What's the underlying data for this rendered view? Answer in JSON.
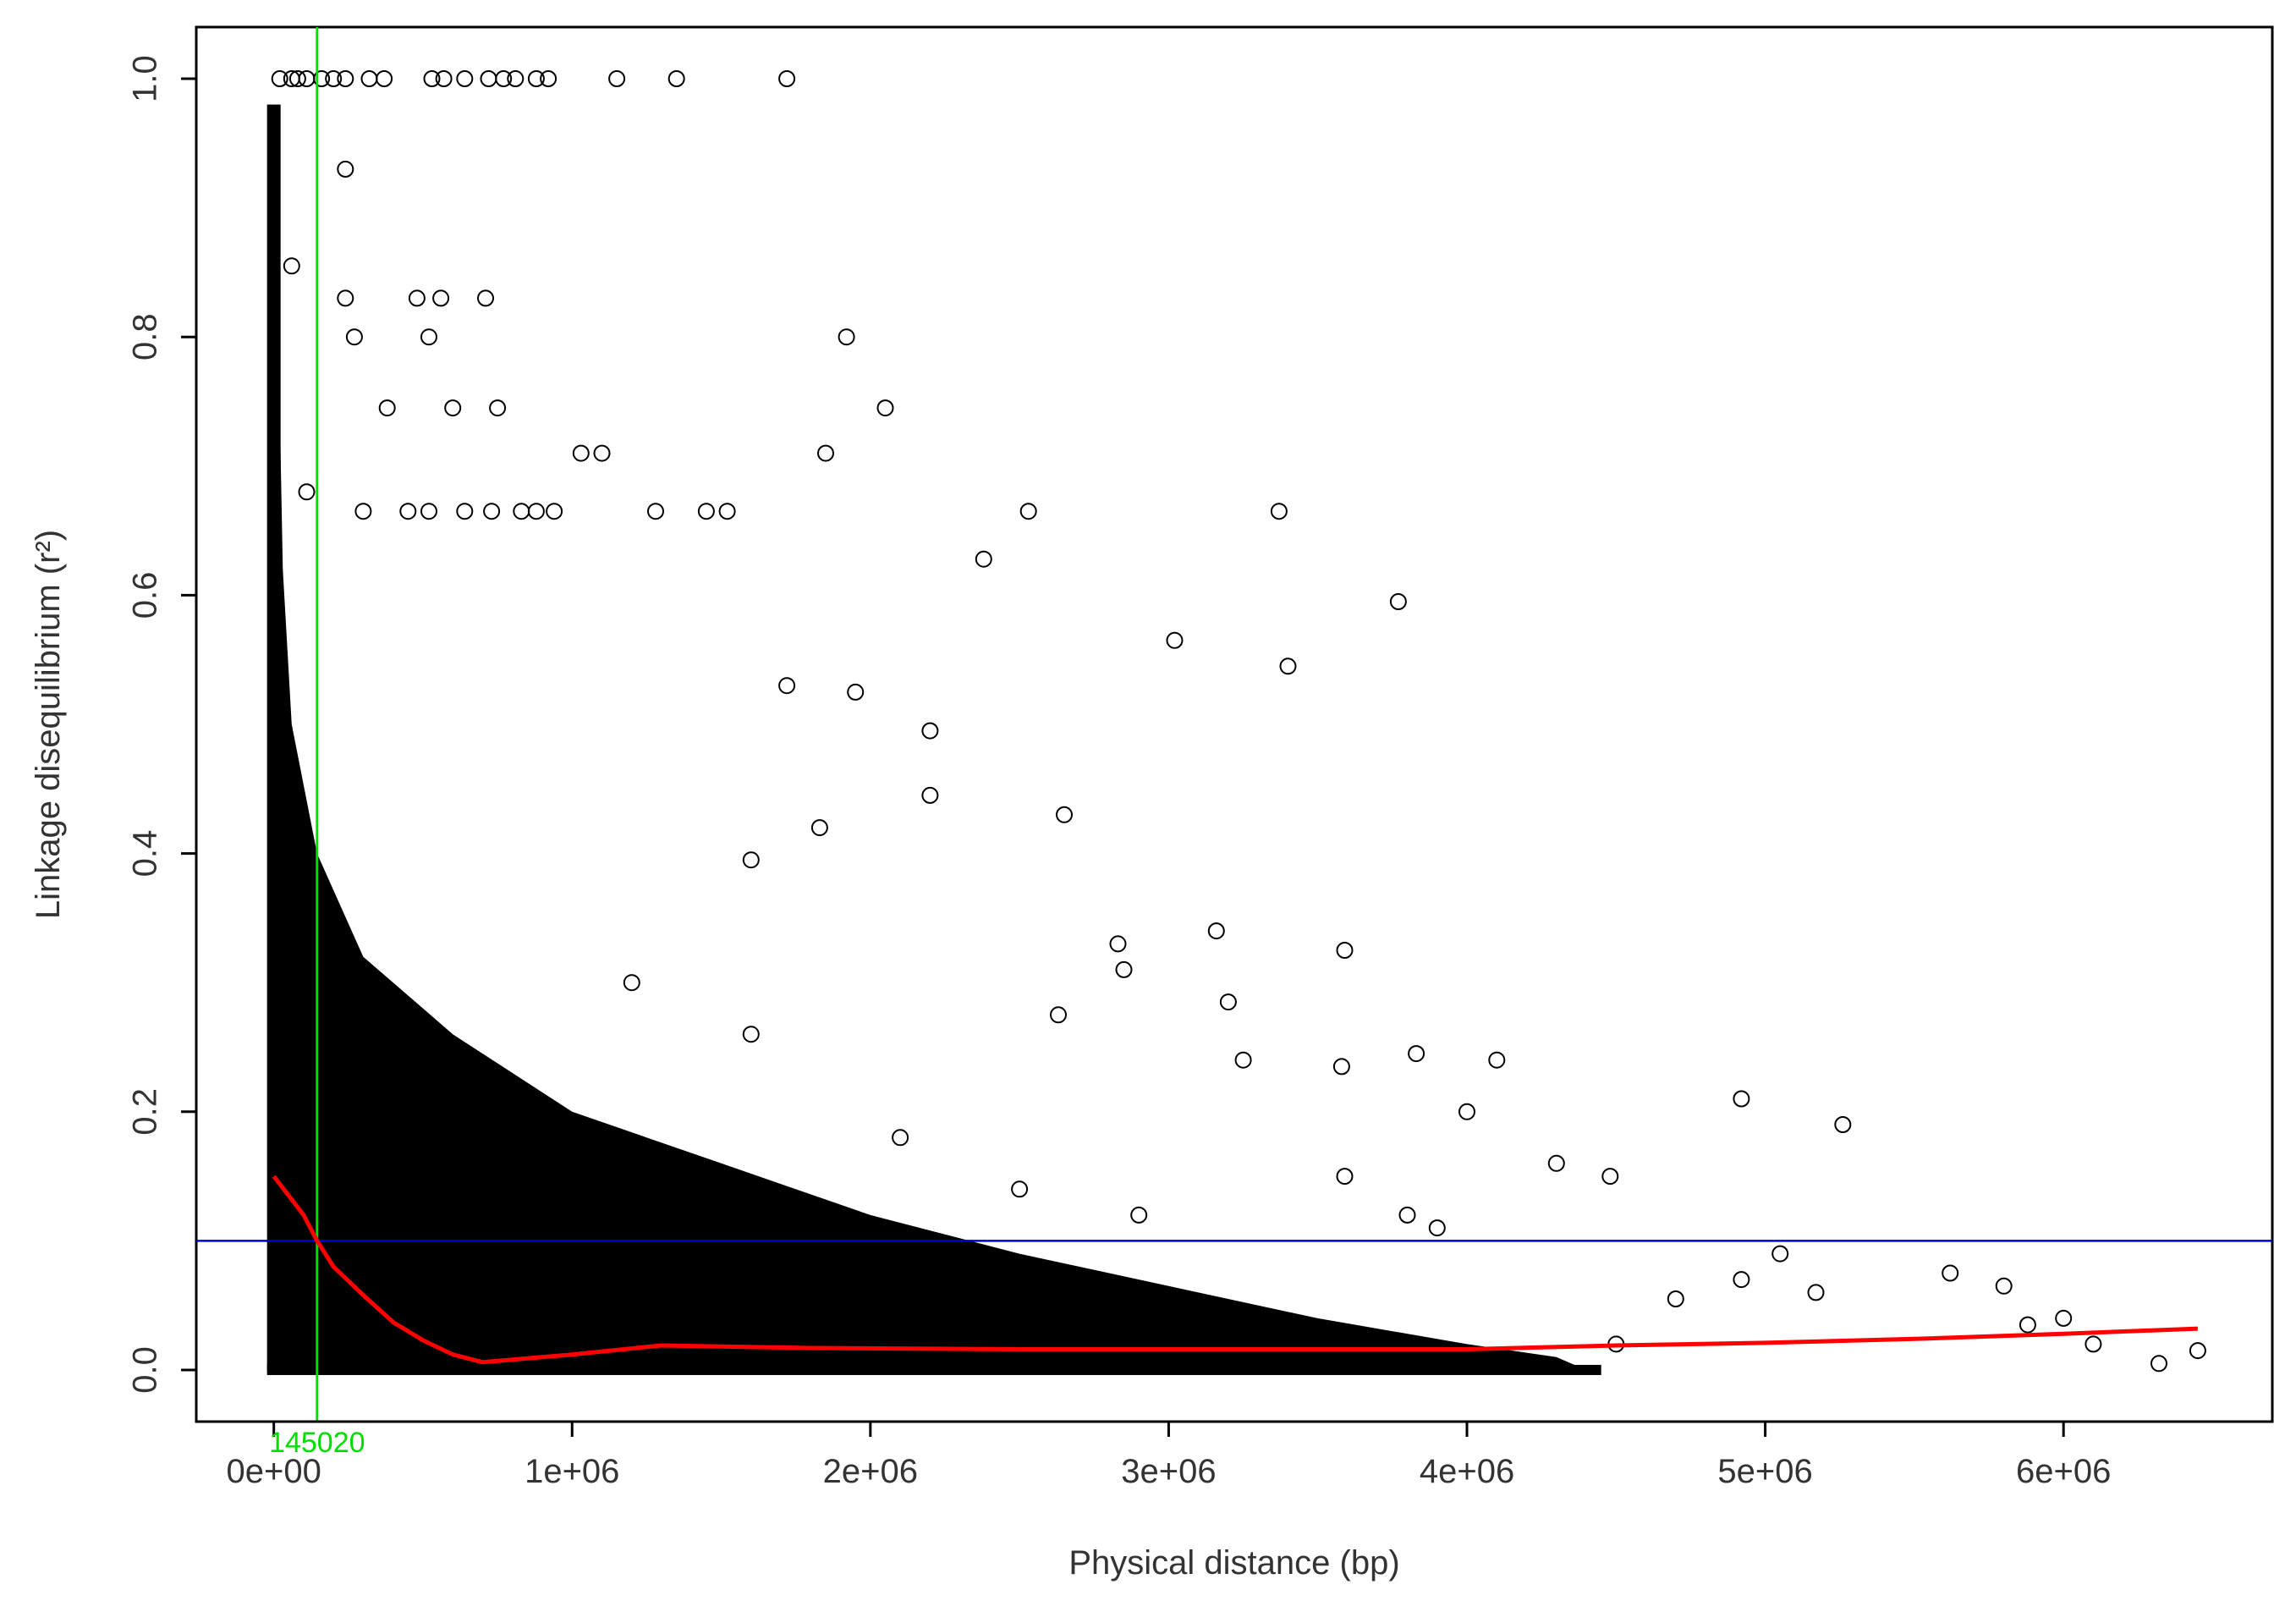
{
  "chart_data": {
    "type": "scatter",
    "title": "",
    "xlabel": "Physical distance (bp)",
    "ylabel": "Linkage disequilibrium (r²)",
    "xlim": [
      -260000,
      6700000
    ],
    "ylim": [
      -0.04,
      1.04
    ],
    "x_ticks": [
      {
        "value": 0,
        "label": "0e+00"
      },
      {
        "value": 1000000,
        "label": "1e+06"
      },
      {
        "value": 2000000,
        "label": "2e+06"
      },
      {
        "value": 3000000,
        "label": "3e+06"
      },
      {
        "value": 4000000,
        "label": "4e+06"
      },
      {
        "value": 5000000,
        "label": "5e+06"
      },
      {
        "value": 6000000,
        "label": "6e+06"
      }
    ],
    "y_ticks": [
      {
        "value": 0.0,
        "label": "0.0"
      },
      {
        "value": 0.2,
        "label": "0.2"
      },
      {
        "value": 0.4,
        "label": "0.4"
      },
      {
        "value": 0.6,
        "label": "0.6"
      },
      {
        "value": 0.8,
        "label": "0.8"
      },
      {
        "value": 1.0,
        "label": "1.0"
      }
    ],
    "grid": false,
    "threshold_line": {
      "axis": "y",
      "value": 0.1,
      "color": "#0000cc"
    },
    "decay_distance_line": {
      "axis": "x",
      "value": 145020,
      "label": "145020",
      "color": "#00dd00"
    },
    "decay_curve": {
      "color": "#ff0000",
      "x": [
        0,
        50000,
        100000,
        145020,
        200000,
        300000,
        400000,
        500000,
        600000,
        700000,
        800000,
        1000000,
        1300000,
        1800000,
        2500000,
        3000000,
        3500000,
        4000000,
        4500000,
        5000000,
        5500000,
        6000000,
        6450000
      ],
      "y": [
        0.15,
        0.135,
        0.12,
        0.1,
        0.08,
        0.058,
        0.037,
        0.023,
        0.012,
        0.006,
        0.008,
        0.012,
        0.019,
        0.017,
        0.016,
        0.016,
        0.016,
        0.016,
        0.019,
        0.021,
        0.024,
        0.028,
        0.032
      ]
    },
    "series": [
      {
        "x": [
          20000,
          60000,
          80000,
          110000,
          160000,
          200000,
          240000,
          320000,
          370000,
          530000,
          570000,
          640000,
          720000,
          770000,
          810000,
          880000,
          920000,
          1150000,
          1350000,
          1720000,
          240000,
          60000,
          240000,
          270000,
          480000,
          520000,
          560000,
          710000,
          1920000,
          380000,
          600000,
          750000,
          2050000,
          1030000,
          1100000,
          1850000,
          110000,
          300000,
          450000,
          520000,
          640000,
          730000,
          830000,
          880000,
          940000,
          1280000,
          1450000,
          1520000,
          2530000,
          3370000,
          2380000,
          3770000,
          3020000,
          3400000,
          1720000,
          1950000,
          2200000,
          2650000,
          2200000,
          1600000,
          1830000,
          2850000,
          3160000,
          3590000,
          3830000,
          4100000,
          2830000,
          3200000,
          2630000,
          3250000,
          3580000,
          4000000,
          4920000,
          5260000,
          3590000,
          3800000,
          4300000,
          4480000,
          5050000,
          5170000,
          5620000,
          5800000,
          5880000,
          6000000,
          6100000,
          6320000,
          6450000,
          4920000,
          4700000,
          4500000,
          3900000,
          2900000,
          2500000,
          2100000,
          1600000,
          1200000
        ],
        "y": [
          1.0,
          1.0,
          1.0,
          1.0,
          1.0,
          1.0,
          1.0,
          1.0,
          1.0,
          1.0,
          1.0,
          1.0,
          1.0,
          1.0,
          1.0,
          1.0,
          1.0,
          1.0,
          1.0,
          1.0,
          0.93,
          0.855,
          0.83,
          0.8,
          0.83,
          0.8,
          0.83,
          0.83,
          0.8,
          0.745,
          0.745,
          0.745,
          0.745,
          0.71,
          0.71,
          0.71,
          0.68,
          0.665,
          0.665,
          0.665,
          0.665,
          0.665,
          0.665,
          0.665,
          0.665,
          0.665,
          0.665,
          0.665,
          0.665,
          0.665,
          0.628,
          0.595,
          0.565,
          0.545,
          0.53,
          0.525,
          0.495,
          0.43,
          0.445,
          0.395,
          0.42,
          0.31,
          0.34,
          0.325,
          0.245,
          0.24,
          0.33,
          0.285,
          0.275,
          0.24,
          0.235,
          0.2,
          0.21,
          0.19,
          0.15,
          0.12,
          0.16,
          0.15,
          0.09,
          0.06,
          0.075,
          0.065,
          0.035,
          0.04,
          0.02,
          0.005,
          0.015,
          0.07,
          0.055,
          0.02,
          0.11,
          0.12,
          0.14,
          0.18,
          0.26,
          0.3
        ]
      }
    ]
  }
}
